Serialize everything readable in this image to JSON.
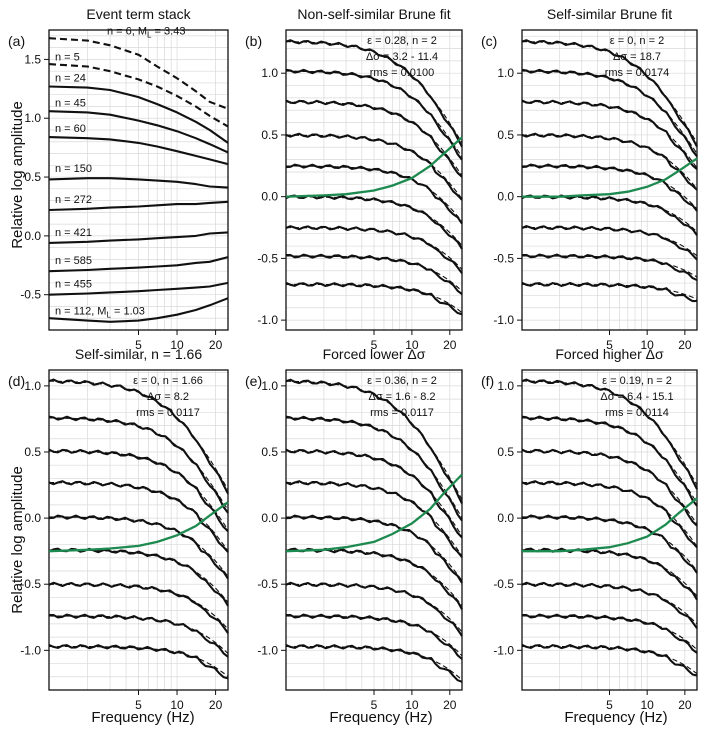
{
  "colors": {
    "green_curve": "#1d8a4f",
    "ink": "#111111",
    "grid": "#d9d9d9"
  },
  "axis_labels": {
    "ylabel": "Relative log amplitude",
    "xlabel": "Frequency (Hz)"
  },
  "chart_data": [
    {
      "id": "a",
      "type": "line",
      "letter": "(a)",
      "title": "Event term stack",
      "xlim": [
        1,
        25
      ],
      "x_scale": "log",
      "ylim": [
        -0.8,
        1.75
      ],
      "xticks": [
        5,
        10,
        20
      ],
      "yticks": [
        -0.5,
        0.0,
        0.5,
        1.0,
        1.5
      ],
      "grid": true,
      "annotation": [],
      "series": [
        {
          "name": "n = 6, M_L = 3.43",
          "style": "bold-dash",
          "x": [
            1,
            2,
            3,
            5,
            7,
            10,
            14,
            18,
            25
          ],
          "y": [
            1.68,
            1.66,
            1.62,
            1.54,
            1.44,
            1.34,
            1.23,
            1.14,
            1.08
          ]
        },
        {
          "name": "n = 5",
          "style": "bold-dash",
          "x": [
            1,
            2,
            3,
            5,
            7,
            10,
            14,
            18,
            25
          ],
          "y": [
            1.46,
            1.44,
            1.4,
            1.33,
            1.27,
            1.19,
            1.1,
            1.02,
            0.93
          ]
        },
        {
          "name": "n = 24",
          "style": "solid",
          "x": [
            1,
            2,
            3,
            5,
            7,
            10,
            14,
            18,
            25
          ],
          "y": [
            1.27,
            1.26,
            1.24,
            1.18,
            1.12,
            1.05,
            0.97,
            0.9,
            0.79
          ]
        },
        {
          "name": "n = 45",
          "style": "solid",
          "x": [
            1,
            2,
            3,
            5,
            7,
            10,
            14,
            18,
            25
          ],
          "y": [
            1.06,
            1.05,
            1.03,
            0.98,
            0.94,
            0.89,
            0.83,
            0.78,
            0.71
          ]
        },
        {
          "name": "n = 60",
          "style": "solid",
          "x": [
            1,
            2,
            3,
            5,
            7,
            10,
            14,
            18,
            25
          ],
          "y": [
            0.84,
            0.83,
            0.82,
            0.79,
            0.76,
            0.72,
            0.68,
            0.65,
            0.61
          ]
        },
        {
          "name": "n = 150",
          "style": "solid",
          "x": [
            1,
            2,
            3,
            5,
            7,
            10,
            14,
            18,
            25
          ],
          "y": [
            0.48,
            0.49,
            0.49,
            0.48,
            0.47,
            0.46,
            0.44,
            0.42,
            0.41
          ]
        },
        {
          "name": "n = 272",
          "style": "solid",
          "x": [
            1,
            2,
            3,
            5,
            7,
            10,
            14,
            18,
            25
          ],
          "y": [
            0.22,
            0.23,
            0.24,
            0.25,
            0.26,
            0.27,
            0.27,
            0.28,
            0.29
          ]
        },
        {
          "name": "n = 421",
          "style": "solid",
          "x": [
            1,
            2,
            3,
            5,
            7,
            10,
            14,
            18,
            25
          ],
          "y": [
            -0.06,
            -0.05,
            -0.04,
            -0.03,
            -0.02,
            -0.01,
            0.0,
            0.02,
            0.03
          ]
        },
        {
          "name": "n = 585",
          "style": "solid",
          "x": [
            1,
            2,
            3,
            5,
            7,
            10,
            14,
            18,
            25
          ],
          "y": [
            -0.3,
            -0.29,
            -0.28,
            -0.27,
            -0.26,
            -0.25,
            -0.23,
            -0.22,
            -0.18
          ]
        },
        {
          "name": "n = 455",
          "style": "solid",
          "x": [
            1,
            2,
            3,
            5,
            7,
            10,
            14,
            18,
            25
          ],
          "y": [
            -0.5,
            -0.49,
            -0.48,
            -0.47,
            -0.46,
            -0.45,
            -0.44,
            -0.43,
            -0.4
          ]
        },
        {
          "name": "n = 112, M_L = 1.03",
          "style": "solid",
          "x": [
            1,
            2,
            3,
            5,
            7,
            10,
            14,
            18,
            25
          ],
          "y": [
            -0.7,
            -0.72,
            -0.73,
            -0.72,
            -0.7,
            -0.67,
            -0.63,
            -0.59,
            -0.53
          ]
        }
      ]
    },
    {
      "id": "b",
      "type": "line",
      "letter": "(b)",
      "title": "Non-self-similar Brune fit",
      "xlim": [
        1,
        25
      ],
      "x_scale": "log",
      "ylim": [
        -1.08,
        1.35
      ],
      "xticks": [
        5,
        10,
        20
      ],
      "yticks": [
        -1.0,
        -0.5,
        0.0,
        0.5,
        1.0
      ],
      "grid": true,
      "annotation": [
        "ε = 0.28, n = 2",
        "Δσ = 3.2 - 11.4",
        "rms = 0.0100"
      ],
      "offsets": [
        1.26,
        1.02,
        0.77,
        0.5,
        0.25,
        0.0,
        -0.25,
        -0.48,
        -0.71
      ],
      "corner_frequencies_hz": [
        10.5,
        12.5,
        14.5,
        16.5,
        18.5,
        20.5,
        23.0,
        26.0,
        30.0
      ],
      "green_curve": {
        "x": [
          1,
          2,
          3,
          5,
          7,
          10,
          14,
          18,
          25
        ],
        "y": [
          0.0,
          0.01,
          0.02,
          0.05,
          0.09,
          0.15,
          0.25,
          0.35,
          0.48
        ]
      }
    },
    {
      "id": "c",
      "type": "line",
      "letter": "(c)",
      "title": "Self-similar Brune fit",
      "xlim": [
        1,
        25
      ],
      "x_scale": "log",
      "ylim": [
        -1.08,
        1.35
      ],
      "xticks": [
        5,
        10,
        20
      ],
      "yticks": [
        -1.0,
        -0.5,
        0.0,
        0.5,
        1.0
      ],
      "grid": true,
      "annotation": [
        "ε = 0, n = 2",
        "Δσ = 18.7",
        "rms = 0.0174"
      ],
      "offsets": [
        1.26,
        1.02,
        0.77,
        0.5,
        0.25,
        0.0,
        -0.25,
        -0.48,
        -0.71
      ],
      "corner_frequencies_hz": [
        10.5,
        13.0,
        16.0,
        19.0,
        22.5,
        26.0,
        30.0,
        36.0,
        44.0
      ],
      "green_curve": {
        "x": [
          1,
          2,
          3,
          5,
          7,
          10,
          14,
          18,
          25
        ],
        "y": [
          0.0,
          0.0,
          0.01,
          0.02,
          0.04,
          0.08,
          0.14,
          0.21,
          0.31
        ]
      }
    },
    {
      "id": "d",
      "type": "line",
      "letter": "(d)",
      "title": "Self-similar, n = 1.66",
      "xlim": [
        1,
        25
      ],
      "x_scale": "log",
      "ylim": [
        -1.3,
        1.12
      ],
      "xticks": [
        5,
        10,
        20
      ],
      "yticks": [
        -1.0,
        -0.5,
        0.0,
        0.5,
        1.0
      ],
      "grid": true,
      "annotation": [
        "ε = 0, n = 1.66",
        "Δσ = 8.2",
        "rms = 0.0117"
      ],
      "offsets": [
        1.04,
        0.76,
        0.51,
        0.27,
        0.01,
        -0.24,
        -0.5,
        -0.74,
        -0.97
      ],
      "corner_frequencies_hz": [
        10.5,
        12.5,
        14.5,
        16.5,
        18.5,
        20.5,
        23.0,
        26.0,
        30.0
      ],
      "green_curve": {
        "x": [
          1,
          2,
          3,
          5,
          7,
          10,
          14,
          18,
          25
        ],
        "y": [
          -0.25,
          -0.24,
          -0.23,
          -0.21,
          -0.18,
          -0.13,
          -0.06,
          0.02,
          0.12
        ]
      }
    },
    {
      "id": "e",
      "type": "line",
      "letter": "(e)",
      "title": "Forced lower Δσ",
      "xlim": [
        1,
        25
      ],
      "x_scale": "log",
      "ylim": [
        -1.3,
        1.12
      ],
      "xticks": [
        5,
        10,
        20
      ],
      "yticks": [
        -1.0,
        -0.5,
        0.0,
        0.5,
        1.0
      ],
      "grid": true,
      "annotation": [
        "ε = 0.36, n = 2",
        "Δσ = 1.6 - 8.2",
        "rms = 0.0117"
      ],
      "offsets": [
        1.04,
        0.76,
        0.51,
        0.27,
        0.01,
        -0.24,
        -0.5,
        -0.74,
        -0.97
      ],
      "corner_frequencies_hz": [
        9.5,
        11.5,
        13.5,
        15.5,
        17.5,
        19.5,
        22.0,
        25.0,
        28.0
      ],
      "green_curve": {
        "x": [
          1,
          2,
          3,
          5,
          7,
          10,
          14,
          18,
          25
        ],
        "y": [
          -0.25,
          -0.24,
          -0.22,
          -0.18,
          -0.12,
          -0.04,
          0.07,
          0.19,
          0.33
        ]
      }
    },
    {
      "id": "f",
      "type": "line",
      "letter": "(f)",
      "title": "Forced higher Δσ",
      "xlim": [
        1,
        25
      ],
      "x_scale": "log",
      "ylim": [
        -1.3,
        1.12
      ],
      "xticks": [
        5,
        10,
        20
      ],
      "yticks": [
        -1.0,
        -0.5,
        0.0,
        0.5,
        1.0
      ],
      "grid": true,
      "annotation": [
        "ε = 0.19, n = 2",
        "Δσ = 6.4 - 15.1",
        "rms = 0.0114"
      ],
      "offsets": [
        1.04,
        0.76,
        0.51,
        0.27,
        0.01,
        -0.24,
        -0.5,
        -0.74,
        -0.97
      ],
      "corner_frequencies_hz": [
        11.0,
        13.5,
        15.5,
        17.5,
        20.0,
        22.5,
        25.0,
        28.0,
        32.0
      ],
      "green_curve": {
        "x": [
          1,
          2,
          3,
          5,
          7,
          10,
          14,
          18,
          25
        ],
        "y": [
          -0.25,
          -0.25,
          -0.24,
          -0.22,
          -0.19,
          -0.14,
          -0.05,
          0.04,
          0.15
        ]
      }
    }
  ]
}
